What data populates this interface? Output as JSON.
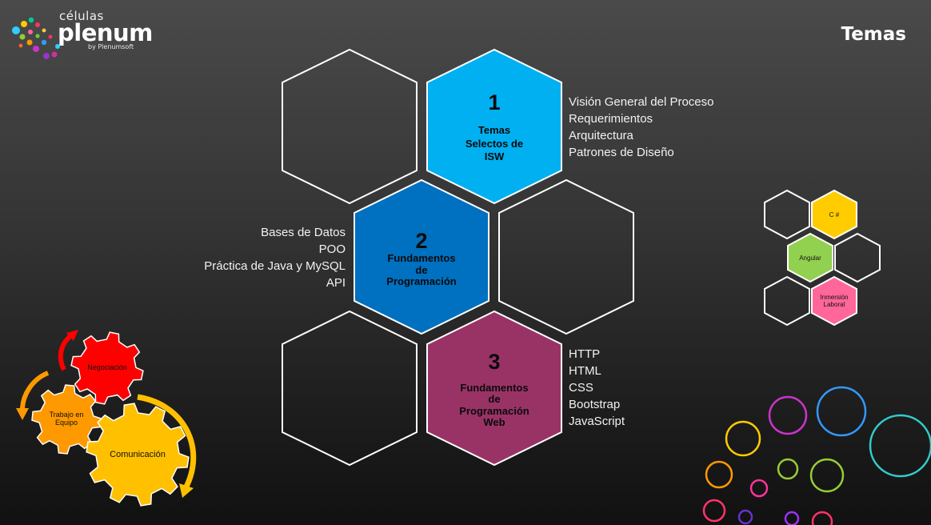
{
  "logo": {
    "top_text": "células",
    "main_text": "plenum",
    "by_text": "by Plenumsoft"
  },
  "page_title": "Temas",
  "hexagons": [
    {
      "number": "1",
      "label_lines": [
        "Temas",
        "Selectos de",
        "ISW"
      ],
      "color": "#00B0F0"
    },
    {
      "number": "2",
      "label_lines": [
        "Fundamentos",
        "de",
        "Programación"
      ],
      "color": "#0070C0"
    },
    {
      "number": "3",
      "label_lines": [
        "Fundamentos",
        "de",
        "Programación",
        "Web"
      ],
      "color": "#993366"
    }
  ],
  "topics": {
    "t1": [
      "Visión General del Proceso",
      "Requerimientos",
      "Arquitectura",
      "Patrones de Diseño"
    ],
    "t2": [
      "Bases de Datos",
      "POO",
      "Práctica de Java y MySQL",
      "API"
    ],
    "t3": [
      "HTTP",
      "HTML",
      "CSS",
      "Bootstrap",
      "JavaScript"
    ]
  },
  "mini_hexes": [
    {
      "label_lines": [
        "C #"
      ],
      "color": "#FFCC00"
    },
    {
      "label_lines": [
        "Angular"
      ],
      "color": "#92D050"
    },
    {
      "label_lines": [
        "Inmersión",
        "Laboral"
      ],
      "color": "#FF6699"
    }
  ],
  "gears": [
    {
      "label_lines": [
        "Negociación"
      ],
      "color": "#FF0000"
    },
    {
      "label_lines": [
        "Trabajo en",
        "Equipo"
      ],
      "color": "#FF9900"
    },
    {
      "label_lines": [
        "Comunicación"
      ],
      "color": "#FFC000"
    }
  ],
  "colors": {
    "outline": "#FFFFFF",
    "arrow_red": "#FF0000",
    "arrow_orange": "#FF9900",
    "arrow_yellow": "#FFC000",
    "circles": [
      "#CC33CC",
      "#3399FF",
      "#FFCC00",
      "#33CCCC",
      "#FF9900",
      "#99CC33",
      "#FF3399",
      "#6633CC",
      "#FF3366",
      "#9933FF"
    ]
  }
}
